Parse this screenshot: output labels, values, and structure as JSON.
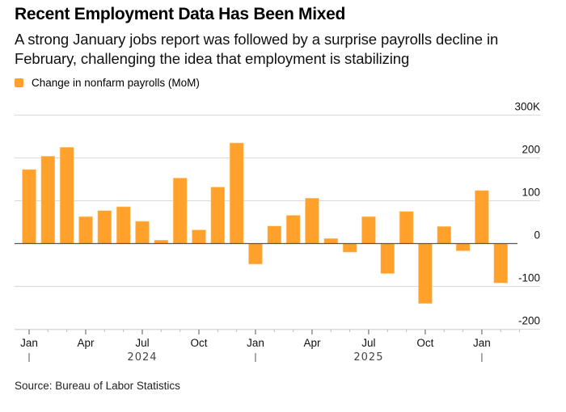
{
  "header": {
    "title": "Recent Employment Data Has Been Mixed",
    "subtitle": "A strong January jobs report was followed by a surprise payrolls decline in February, challenging the idea that employment is stabilizing"
  },
  "legend": {
    "items": [
      {
        "label": "Change in nonfarm payrolls (MoM)",
        "color": "#FFA12B"
      }
    ]
  },
  "source": "Source: Bureau of Labor Statistics",
  "chart_data": {
    "type": "bar",
    "title": "Recent Employment Data Has Been Mixed",
    "xlabel": "",
    "ylabel": "",
    "units": "thousands",
    "ylim": [
      -200,
      300
    ],
    "y_ticks": [
      300,
      200,
      100,
      0,
      -100,
      -200
    ],
    "y_tick_labels": [
      "300K",
      "200",
      "100",
      "0",
      "-100",
      "-200"
    ],
    "y_axis_position": "right",
    "grid": true,
    "legend_position": "top-left",
    "bar_color": "#FFA12B",
    "categories": [
      "2024-01",
      "2024-02",
      "2024-03",
      "2024-04",
      "2024-05",
      "2024-06",
      "2024-07",
      "2024-08",
      "2024-09",
      "2024-10",
      "2024-11",
      "2024-12",
      "2025-01",
      "2025-02",
      "2025-03",
      "2025-04",
      "2025-05",
      "2025-06",
      "2025-07",
      "2025-08",
      "2025-09",
      "2025-10",
      "2025-11",
      "2025-12",
      "2026-01",
      "2026-02"
    ],
    "series": [
      {
        "name": "Change in nonfarm payrolls (MoM)",
        "values": [
          173,
          204,
          225,
          63,
          77,
          86,
          52,
          8,
          153,
          32,
          132,
          235,
          -48,
          41,
          66,
          106,
          12,
          -20,
          63,
          -70,
          75,
          -140,
          40,
          -17,
          124,
          -92
        ]
      }
    ],
    "x_tick_labels": [
      {
        "index": 0,
        "label": "Jan"
      },
      {
        "index": 3,
        "label": "Apr"
      },
      {
        "index": 6,
        "label": "Jul"
      },
      {
        "index": 9,
        "label": "Oct"
      },
      {
        "index": 12,
        "label": "Jan"
      },
      {
        "index": 15,
        "label": "Apr"
      },
      {
        "index": 18,
        "label": "Jul"
      },
      {
        "index": 21,
        "label": "Oct"
      },
      {
        "index": 24,
        "label": "Jan"
      }
    ],
    "year_labels": [
      {
        "center_index": 6,
        "label": "2024"
      },
      {
        "center_index": 18,
        "label": "2025"
      }
    ],
    "year_separators": [
      0,
      12,
      24
    ]
  }
}
